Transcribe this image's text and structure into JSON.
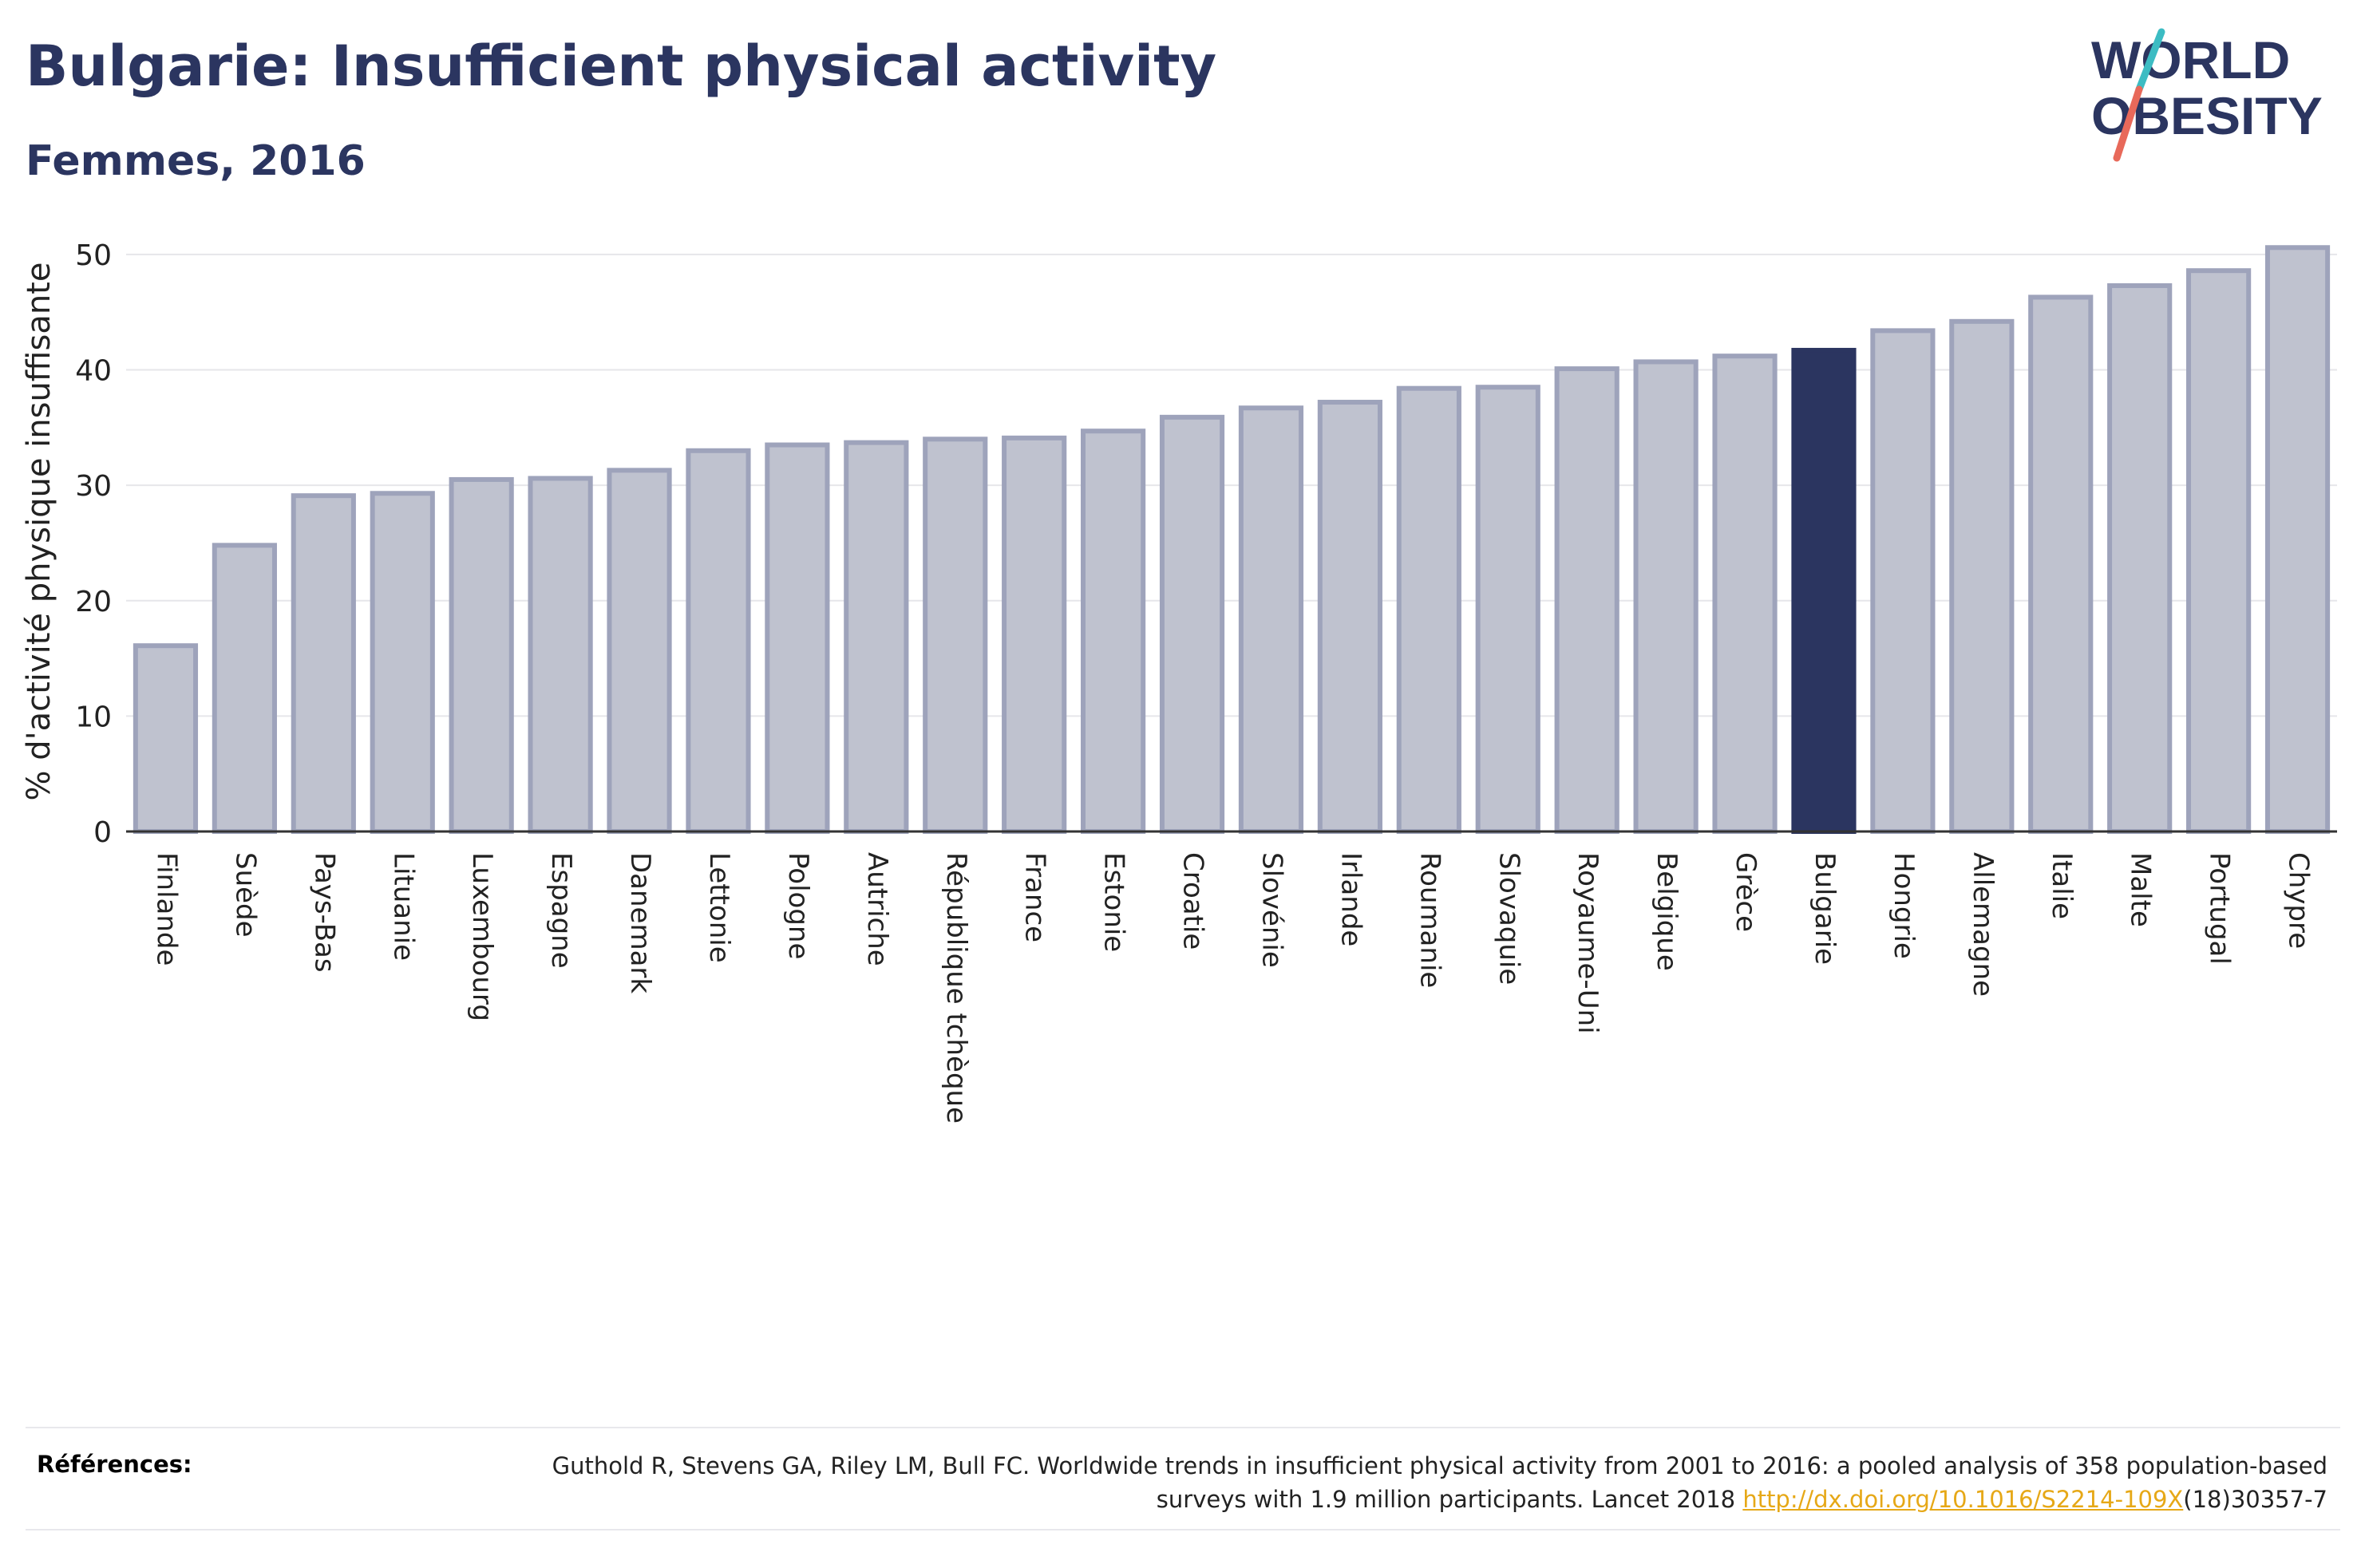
{
  "header": {
    "title": "Bulgarie: Insufficient physical activity",
    "subtitle": "Femmes, 2016"
  },
  "logo": {
    "line1": "WORLD",
    "line2": "OBESITY",
    "colors": {
      "text": "#2b3560",
      "slash_teal": "#3cbcc3",
      "slash_coral": "#e8695a"
    }
  },
  "chart_data": {
    "type": "bar",
    "ylabel": "% d'activité physique insuffisante",
    "xlabel": "",
    "ylim": [
      0,
      52
    ],
    "yticks": [
      0,
      10,
      20,
      30,
      40,
      50
    ],
    "grid": true,
    "highlight": "Bulgarie",
    "colors": {
      "bar": "#bfc2cf",
      "bar_border": "#9ea3bb",
      "highlight": "#2b3560"
    },
    "categories": [
      "Finlande",
      "Suède",
      "Pays-Bas",
      "Lituanie",
      "Luxembourg",
      "Espagne",
      "Danemark",
      "Lettonie",
      "Pologne",
      "Autriche",
      "République tchèque",
      "France",
      "Estonie",
      "Croatie",
      "Slovénie",
      "Irlande",
      "Roumanie",
      "Slovaquie",
      "Royaume-Uni",
      "Belgique",
      "Grèce",
      "Bulgarie",
      "Hongrie",
      "Allemagne",
      "Italie",
      "Malte",
      "Portugal",
      "Chypre"
    ],
    "values": [
      16.1,
      24.8,
      29.1,
      29.3,
      30.5,
      30.6,
      31.3,
      33.0,
      33.5,
      33.7,
      34.0,
      34.1,
      34.7,
      35.9,
      36.7,
      37.2,
      38.4,
      38.5,
      40.1,
      40.7,
      41.2,
      41.7,
      43.4,
      44.2,
      46.3,
      47.3,
      48.6,
      50.6
    ]
  },
  "references": {
    "label": "Références:",
    "text_before": "Guthold R, Stevens GA, Riley LM, Bull FC. Worldwide trends in insufficient physical activity from 2001 to 2016: a pooled analysis of 358 population-based surveys with 1.9 million participants. Lancet 2018 ",
    "link": "http://dx.doi.org/10.1016/S2214-109X",
    "text_after": "(18)30357-7"
  }
}
